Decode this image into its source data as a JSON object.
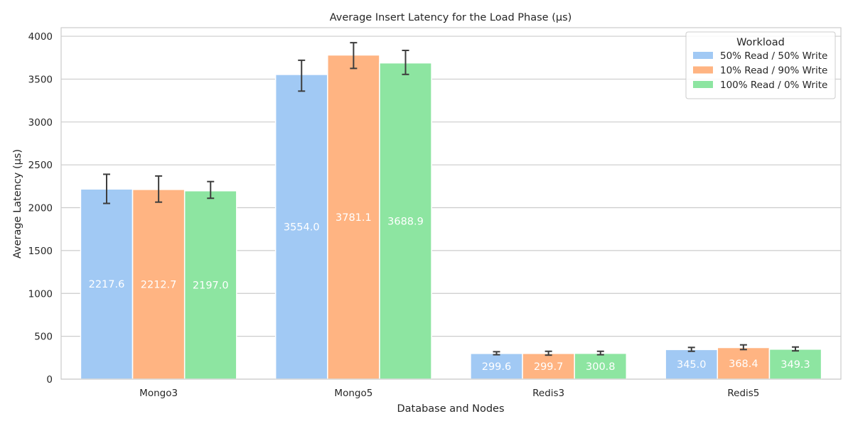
{
  "chart_data": {
    "type": "bar",
    "title": "Average Insert Latency for the Load Phase (µs)",
    "xlabel": "Database and Nodes",
    "ylabel": "Average Latency (µs)",
    "categories": [
      "Mongo3",
      "Mongo5",
      "Redis3",
      "Redis5"
    ],
    "series": [
      {
        "name": "50% Read / 50% Write",
        "color": "#a1c9f4",
        "values": [
          2217.6,
          3554.0,
          299.6,
          345.0
        ],
        "labels": [
          "2217.6",
          "3554.0",
          "299.6",
          "345.0"
        ],
        "error_low": [
          2050,
          3360,
          285,
          325
        ],
        "error_high": [
          2390,
          3720,
          320,
          370
        ]
      },
      {
        "name": "10% Read / 90% Write",
        "color": "#ffb482",
        "values": [
          2212.7,
          3781.1,
          299.7,
          368.4
        ],
        "labels": [
          "2212.7",
          "3781.1",
          "299.7",
          "368.4"
        ],
        "error_low": [
          2065,
          3625,
          280,
          345
        ],
        "error_high": [
          2370,
          3925,
          325,
          400
        ]
      },
      {
        "name": "100% Read / 0% Write",
        "color": "#8de5a1",
        "values": [
          2197.0,
          3688.9,
          300.8,
          349.3
        ],
        "labels": [
          "2197.0",
          "3688.9",
          "300.8",
          "349.3"
        ],
        "error_low": [
          2110,
          3555,
          285,
          330
        ],
        "error_high": [
          2305,
          3835,
          325,
          375
        ]
      }
    ],
    "ylim": [
      0,
      4100
    ],
    "yticks": [
      "0",
      "500",
      "1000",
      "1500",
      "2000",
      "2500",
      "3000",
      "3500",
      "4000"
    ],
    "grid": true,
    "legend": {
      "title": "Workload",
      "position": "top-right"
    }
  }
}
